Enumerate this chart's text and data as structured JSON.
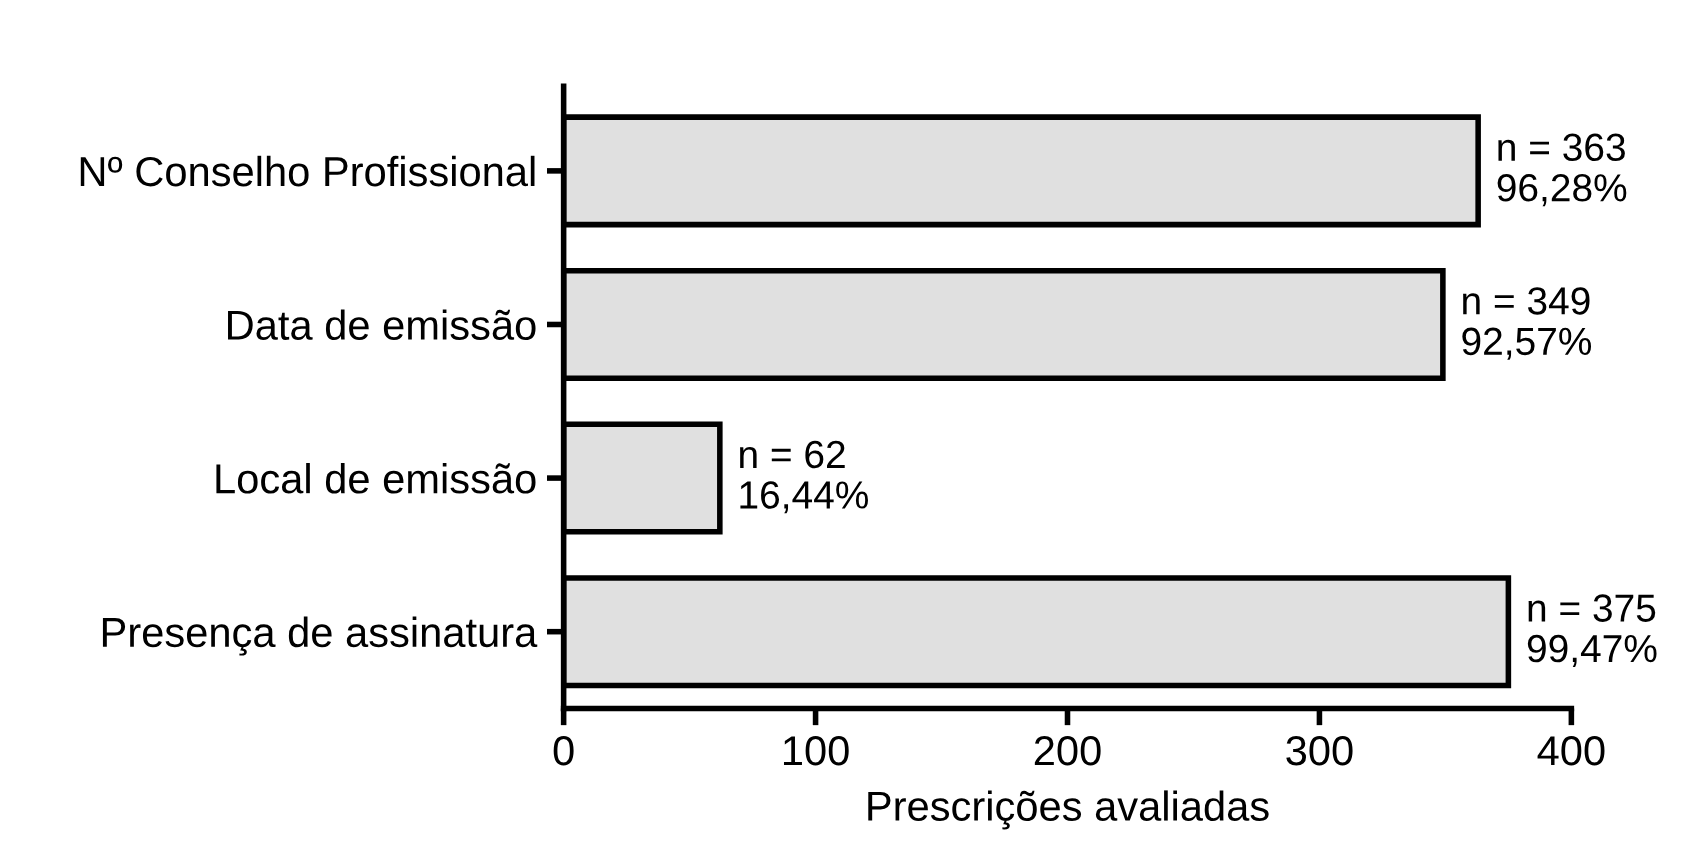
{
  "chart_data": {
    "type": "bar",
    "orientation": "horizontal",
    "xlabel": "Prescrições avaliadas",
    "categories": [
      "Nº Conselho Profissional",
      "Data de emissão",
      "Local de emissão",
      "Presença de assinatura"
    ],
    "values": [
      363,
      349,
      62,
      375
    ],
    "value_labels": [
      "n = 363\n96,28%",
      "n = 349\n92,57%",
      "n = 62\n16,44%",
      "n = 375\n99,47%"
    ],
    "color": "#e0e0e0",
    "xlim": [
      0,
      400
    ],
    "xticks": [
      0,
      100,
      200,
      300,
      400
    ],
    "grid": false
  }
}
